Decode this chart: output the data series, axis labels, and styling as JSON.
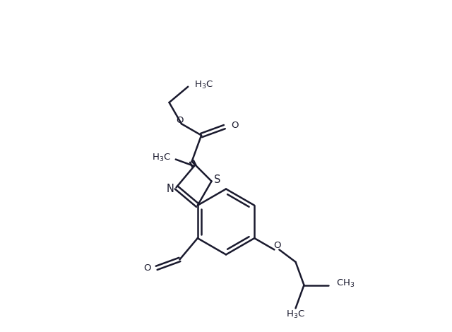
{
  "bg_color": "#FFFFFF",
  "bond_color": "#1a1a2e",
  "text_color": "#1a1a2e",
  "line_width": 1.8,
  "font_size": 9.5,
  "fig_width": 6.4,
  "fig_height": 4.7,
  "xlim": [
    -1.0,
    8.0
  ],
  "ylim": [
    -5.5,
    4.5
  ]
}
